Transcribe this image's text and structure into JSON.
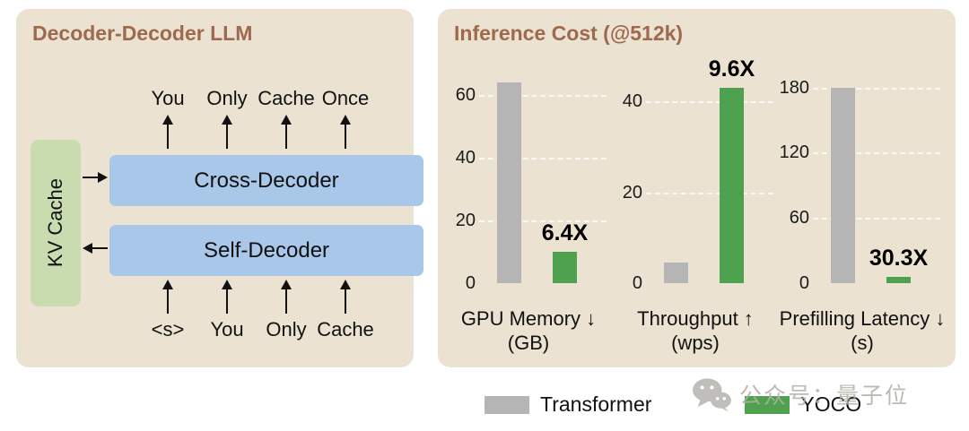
{
  "left_panel": {
    "title": "Decoder-Decoder LLM",
    "kv_cache_label": "KV Cache",
    "cross_decoder_label": "Cross-Decoder",
    "self_decoder_label": "Self-Decoder",
    "output_tokens": [
      "You",
      "Only",
      "Cache",
      "Once"
    ],
    "input_tokens": [
      "<s>",
      "You",
      "Only",
      "Cache"
    ]
  },
  "right_panel": {
    "title": "Inference Cost (@512k)",
    "legend": [
      {
        "label": "Transformer",
        "color": "#b5b5b5"
      },
      {
        "label": "YOCO",
        "color": "#4ea14e"
      }
    ]
  },
  "chart_data": [
    {
      "type": "bar",
      "label": "GPU Memory ↓",
      "unit": "(GB)",
      "categories": [
        "Transformer",
        "YOCO"
      ],
      "values": [
        64,
        10
      ],
      "annotation": "6.4X",
      "annotation_over": "YOCO",
      "yticks": [
        0,
        20,
        40,
        60
      ],
      "ylim": [
        0,
        65
      ]
    },
    {
      "type": "bar",
      "label": "Throughput ↑",
      "unit": "(wps)",
      "categories": [
        "Transformer",
        "YOCO"
      ],
      "values": [
        4.5,
        43
      ],
      "annotation": "9.6X",
      "annotation_over": "YOCO",
      "yticks": [
        0,
        20,
        40
      ],
      "ylim": [
        0,
        45
      ]
    },
    {
      "type": "bar",
      "label": "Prefilling Latency ↓",
      "unit": "(s)",
      "categories": [
        "Transformer",
        "YOCO"
      ],
      "values": [
        180,
        6
      ],
      "annotation": "30.3X",
      "annotation_over": "YOCO",
      "yticks": [
        0,
        60,
        120,
        180
      ],
      "ylim": [
        0,
        188
      ]
    }
  ],
  "watermark": {
    "text": "公众号：量子位"
  },
  "colors": {
    "panel_bg": "#ece2d2",
    "title_brown": "#9d6a4d",
    "decoder_blue": "#a9c7e8",
    "kv_green": "#c9dcaf",
    "bar_gray": "#b5b5b5",
    "bar_green": "#4ea14e"
  }
}
